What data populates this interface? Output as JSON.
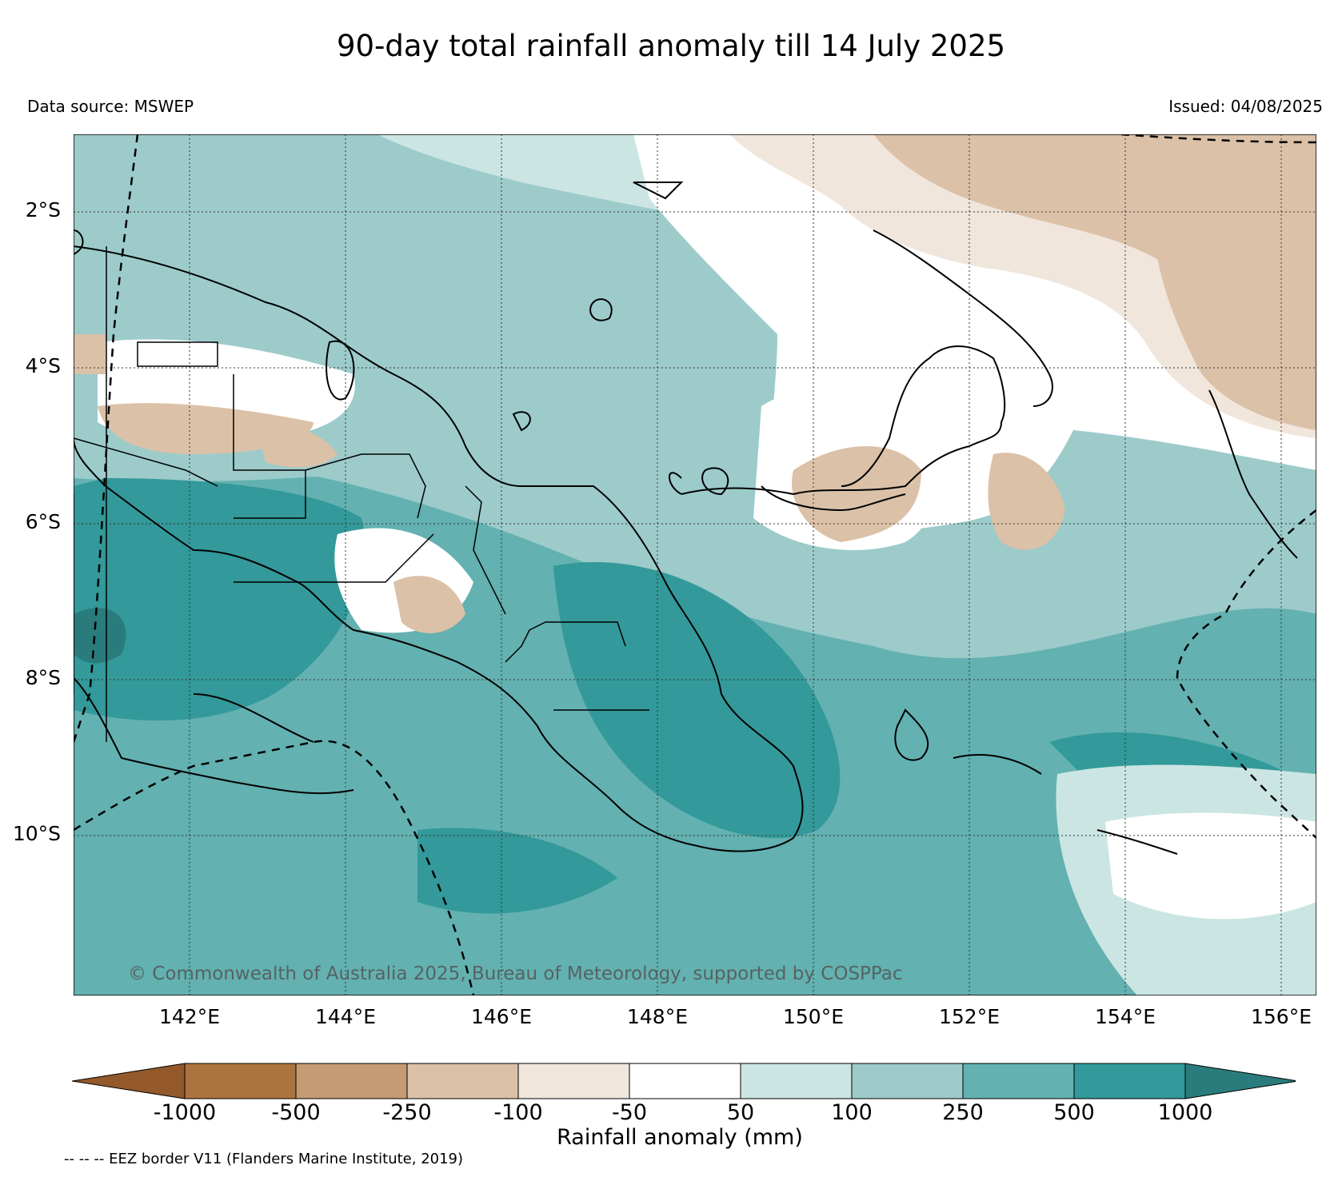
{
  "title": "90-day total rainfall anomaly till 14 July 2025",
  "data_source": "Data source: MSWEP",
  "issued": "Issued: 04/08/2025",
  "copyright": "© Commonwealth of Australia 2025, Bureau of Meteorology, supported by COSPPac",
  "eez_note": "-- -- -- EEZ border V11 (Flanders Marine Institute, 2019)",
  "latitude_labels": [
    "2°S",
    "4°S",
    "6°S",
    "8°S",
    "10°S"
  ],
  "longitude_labels": [
    "142°E",
    "144°E",
    "146°E",
    "148°E",
    "150°E",
    "152°E",
    "154°E",
    "156°E"
  ],
  "colorbar": {
    "label": "Rainfall anomaly (mm)",
    "ticks": [
      "-1000",
      "-500",
      "-250",
      "-100",
      "-50",
      "50",
      "100",
      "250",
      "500",
      "1000"
    ],
    "colors": [
      "#93592a",
      "#ab743e",
      "#c49b72",
      "#dbc1a8",
      "#f1e6dc",
      "#ffffff",
      "#cbe5e3",
      "#9ccbca",
      "#63b1b1",
      "#33999a",
      "#2a7c7c"
    ]
  }
}
